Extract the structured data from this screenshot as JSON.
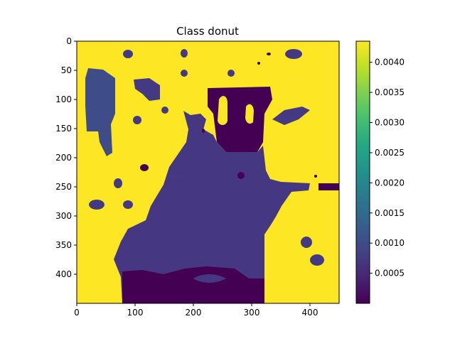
{
  "chart_data": {
    "type": "heatmap",
    "title": "Class donut",
    "xlabel": "",
    "ylabel": "",
    "x_ticks": [
      0,
      100,
      200,
      300,
      400
    ],
    "y_ticks": [
      0,
      50,
      100,
      150,
      200,
      250,
      300,
      350,
      400
    ],
    "xlim": [
      0,
      450
    ],
    "ylim": [
      450,
      0
    ],
    "colormap": "viridis",
    "colorbar": {
      "min": 0.0,
      "max": 0.00435,
      "ticks": [
        "0.0005",
        "0.0010",
        "0.0015",
        "0.0020",
        "0.0025",
        "0.0030",
        "0.0035",
        "0.0040"
      ],
      "tick_values": [
        0.0005,
        0.001,
        0.0015,
        0.002,
        0.0025,
        0.003,
        0.0035,
        0.004
      ]
    },
    "background_value": 0.0043,
    "regions": [
      {
        "name": "central-body",
        "value": 0.0006,
        "color": "#443983"
      },
      {
        "name": "bottom-base",
        "value": 0.0001,
        "color": "#440154"
      },
      {
        "name": "top-block",
        "value": 0.0001,
        "color": "#440154"
      },
      {
        "name": "left-strip",
        "value": 0.0007,
        "color": "#3f4788"
      },
      {
        "name": "scattered-blobs",
        "value": 0.0006,
        "color": "#453781"
      },
      {
        "name": "dark-spots",
        "value": 0.0001,
        "color": "#440154"
      }
    ]
  },
  "colors": {
    "yellow": "#fde725",
    "dark_purple": "#440154",
    "mid_purple": "#433e85",
    "blue_purple": "#3e4c8a"
  }
}
